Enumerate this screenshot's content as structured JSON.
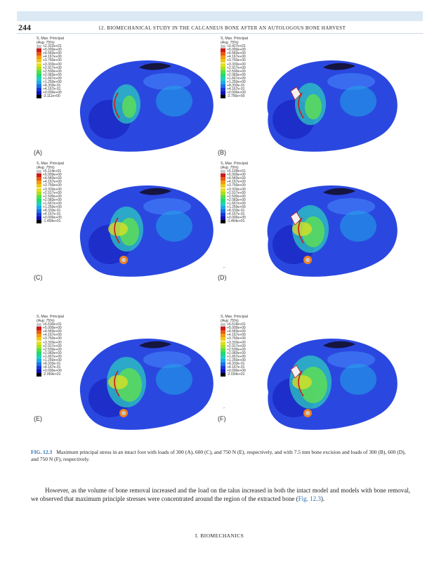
{
  "header": {
    "page_number": "244",
    "running_head": "12. BIOMECHANICAL STUDY IN THE CALCANEUS BONE AFTER AN AUTOLOGOUS BONE HARVEST"
  },
  "legend_colors": [
    "#c8c8c8",
    "#d01818",
    "#e85a14",
    "#f59a10",
    "#f0c814",
    "#e0e020",
    "#a8e020",
    "#50e04a",
    "#20d878",
    "#20d0c0",
    "#20a8e8",
    "#2070e8",
    "#1838d8",
    "#1010b8",
    "#000000"
  ],
  "panels": [
    {
      "label": "(A)",
      "legend_title": [
        "S, Max. Principal",
        "(Avg: 75%)"
      ],
      "legend_values": [
        "+2.322e+01",
        "+5.000e+00",
        "+4.583e+00",
        "+4.167e+00",
        "+3.750e+00",
        "+3.333e+00",
        "+2.917e+00",
        "+2.500e+00",
        "+2.083e+00",
        "+1.667e+00",
        "+1.250e+00",
        "+8.333e-01",
        "+4.167e-01",
        "+0.000e+00",
        "-3.111e+00"
      ]
    },
    {
      "label": "(B)",
      "legend_title": [
        "S, Max. Principal",
        "(Avg: 75%)"
      ],
      "legend_values": [
        "+3.427e+01",
        "+5.000e+00",
        "+4.583e+00",
        "+4.167e+00",
        "+3.750e+00",
        "+3.333e+00",
        "+2.917e+00",
        "+2.500e+00",
        "+2.083e+00",
        "+1.667e+00",
        "+1.250e+00",
        "+8.333e-01",
        "+4.167e-01",
        "+0.000e+00",
        "-2.756e+00"
      ]
    },
    {
      "label": "(C)",
      "legend_title": [
        "S, Max. Principal",
        "(Avg: 75%)"
      ],
      "legend_values": [
        "+5.114e+01",
        "+5.000e+00",
        "+4.583e+00",
        "+4.167e+00",
        "+3.750e+00",
        "+3.333e+00",
        "+2.917e+00",
        "+2.500e+00",
        "+2.083e+00",
        "+1.667e+00",
        "+1.250e+00",
        "+8.333e-01",
        "+4.167e-01",
        "+0.000e+00",
        "-1.499e+01"
      ]
    },
    {
      "label": "(D)",
      "legend_title": [
        "S, Max. Principal",
        "(Avg: 75%)"
      ],
      "legend_values": [
        "+5.109e+01",
        "+5.000e+00",
        "+4.583e+00",
        "+4.167e+00",
        "+3.750e+00",
        "+3.333e+00",
        "+2.917e+00",
        "+2.500e+00",
        "+2.083e+00",
        "+1.667e+00",
        "+1.250e+00",
        "+8.333e-01",
        "+4.167e-01",
        "+0.000e+00",
        "-1.464e+01"
      ]
    },
    {
      "label": "(E)",
      "legend_title": [
        "S, Max. Principal",
        "(Avg: 75%)"
      ],
      "legend_values": [
        "+6.530e+01",
        "+5.000e+00",
        "+4.583e+00",
        "+4.167e+00",
        "+3.750e+00",
        "+3.333e+00",
        "+2.917e+00",
        "+2.500e+00",
        "+2.083e+00",
        "+1.667e+00",
        "+1.250e+00",
        "+8.333e-01",
        "+4.167e-01",
        "+0.000e+00",
        "-2.069e+01"
      ]
    },
    {
      "label": "(F)",
      "legend_title": [
        "S, Max. Principal",
        "(Avg: 75%)"
      ],
      "legend_values": [
        "+6.519e+01",
        "+5.000e+00",
        "+4.583e+00",
        "+4.167e+00",
        "+3.750e+00",
        "+3.333e+00",
        "+2.917e+00",
        "+2.500e+00",
        "+2.083e+00",
        "+1.667e+00",
        "+1.250e+00",
        "+8.333e-01",
        "+4.167e-01",
        "+0.000e+00",
        "-2.034e+01"
      ]
    }
  ],
  "caption": {
    "label": "FIG. 12.3",
    "text": "Maximum principal stress in an intact foot with loads of 300 (A), 600 (C), and 750 N (E), respectively, and with 7.5 mm bone excision and loads of 300 (B), 600 (D), and 750 N (F), respectively."
  },
  "body": {
    "text_before": "However, as the volume of bone removal increased and the load on the talus increased in both the intact model and models with bone removal, we observed that maximum principle stresses were concentrated around the region of the extracted bone (",
    "fig_ref": "Fig. 12.3",
    "text_after": ")."
  },
  "footer": "I. BIOMECHANICS"
}
